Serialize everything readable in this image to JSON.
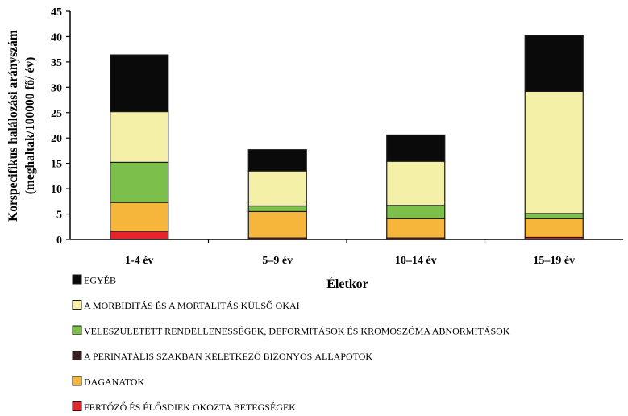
{
  "chart_data": {
    "type": "bar",
    "stacked": true,
    "xlabel": "Életkor",
    "ylabel_line1": "Korspecifikus halálozási arányszám",
    "ylabel_line2": "(meghaltak/100000 fő/ év)",
    "ylim": [
      0,
      45
    ],
    "yticks": [
      "0",
      "5",
      "10",
      "15",
      "20",
      "25",
      "30",
      "35",
      "40",
      "45"
    ],
    "grid": false,
    "legend_position": "bottom",
    "categories": [
      "1-4 év",
      "5–9 év",
      "10–14 év",
      "15–19 év"
    ],
    "series": [
      {
        "name": "FERTŐZŐ ÉS ÉLŐSDIEK OKOZTA BETEGSÉGEK",
        "color": "#e8242b",
        "values": [
          1.6,
          0.3,
          0.3,
          0.4
        ]
      },
      {
        "name": "DAGANATOK",
        "color": "#f6b63b",
        "values": [
          5.7,
          5.2,
          3.8,
          3.7
        ]
      },
      {
        "name": "A PERINATÁLIS SZAKBAN KELETKEZŐ BIZONYOS ÁLLAPOTOK",
        "color": "#3a1f22",
        "values": [
          0.0,
          0.0,
          0.0,
          0.0
        ]
      },
      {
        "name": "VELESZÜLETETT RENDELLENESSÉGEK, DEFORMITÁSOK ÉS KROMOSZÓMA ABNORMITÁSOK",
        "color": "#7cbf4a",
        "values": [
          7.9,
          1.1,
          2.6,
          1.0
        ]
      },
      {
        "name": "A MORBIDITÁS ÉS A MORTALITÁS KÜLSŐ OKAI",
        "color": "#f4f0a8",
        "values": [
          10.0,
          6.9,
          8.7,
          24.1
        ]
      },
      {
        "name": "EGYÉB",
        "color": "#0a0a0a",
        "values": [
          11.2,
          4.2,
          5.2,
          11.0
        ]
      }
    ],
    "legend_order": [
      5,
      4,
      3,
      2,
      1,
      0
    ]
  }
}
